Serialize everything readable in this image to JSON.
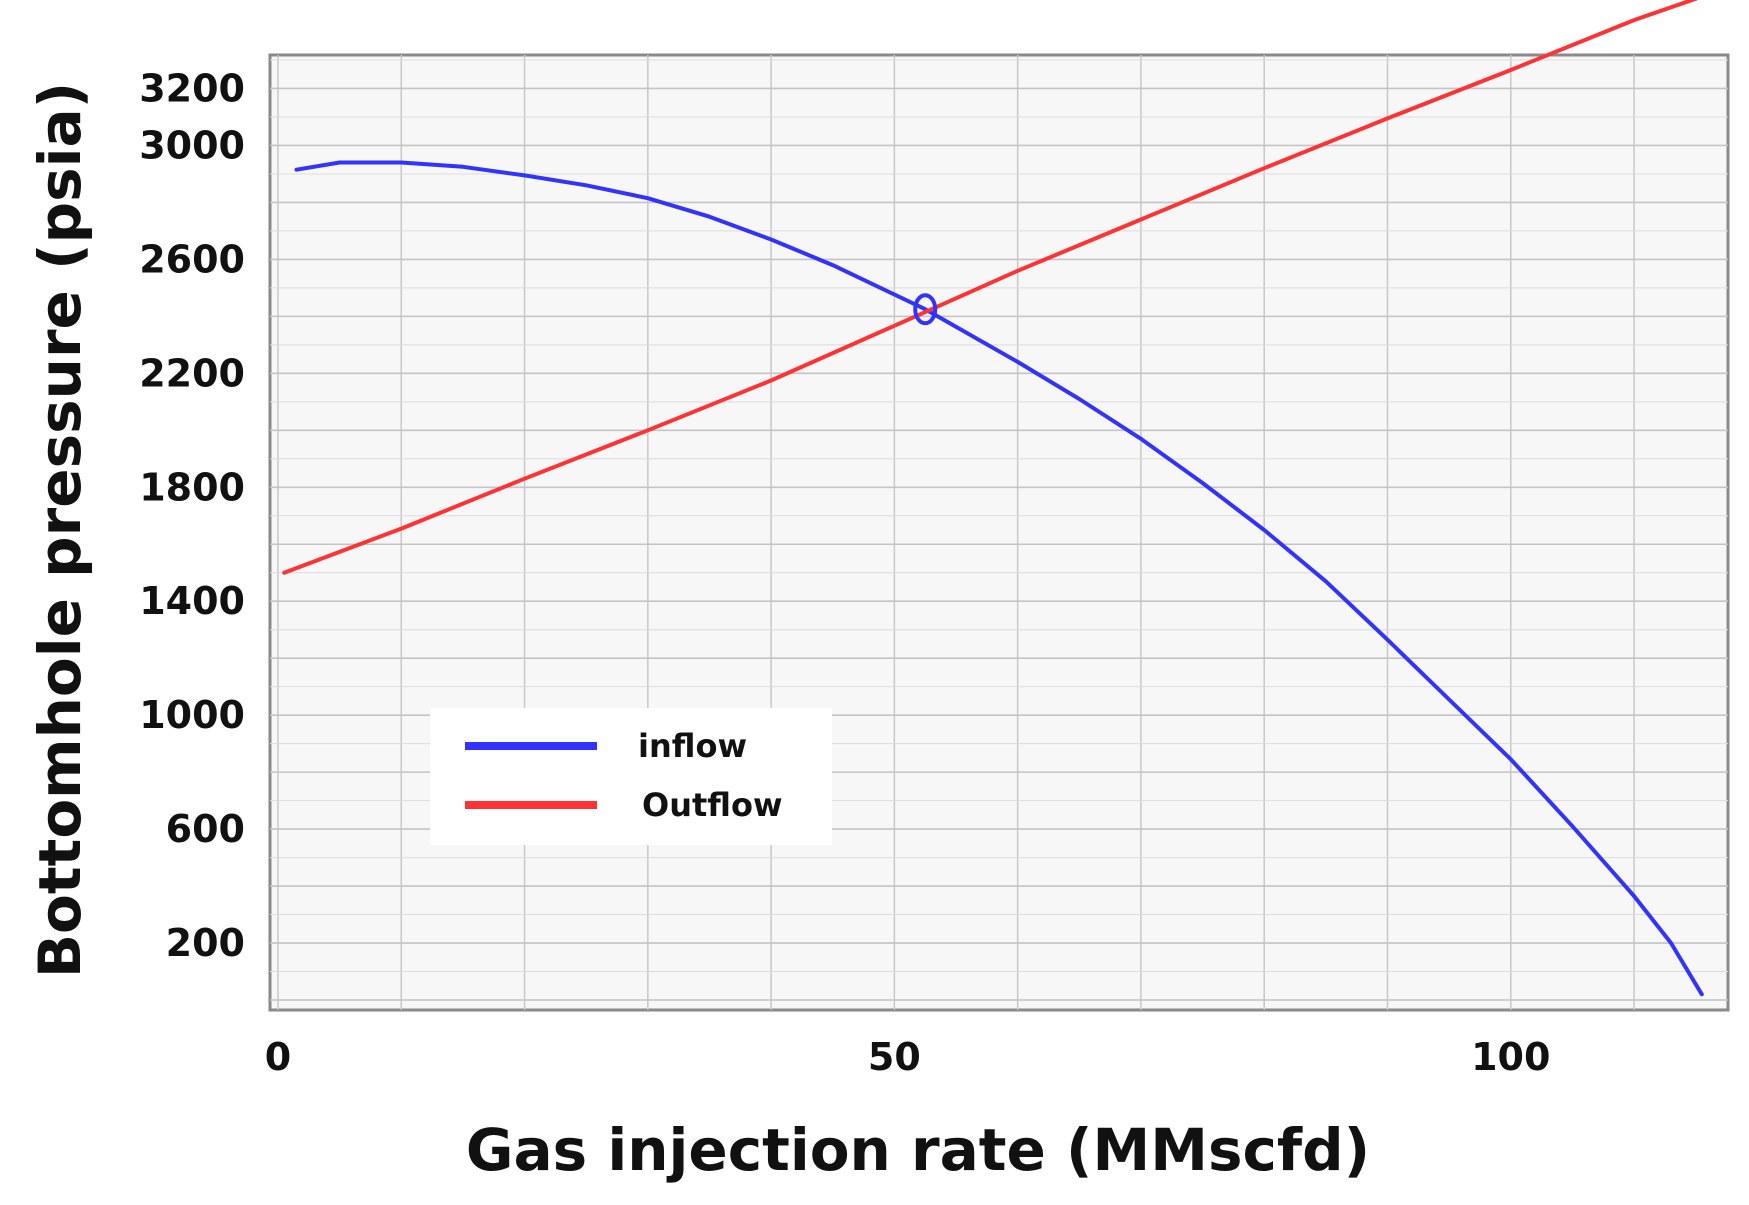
{
  "chart_data": {
    "type": "line",
    "xlabel": "Gas injection rate (MMscfd)",
    "ylabel": "Bottomhole pressure (psia)",
    "xlim": [
      0,
      116
    ],
    "ylim": [
      0,
      3300
    ],
    "x_ticks": [
      0,
      50,
      100
    ],
    "y_ticks": [
      200,
      600,
      1000,
      1400,
      1800,
      2200,
      2600,
      3000,
      3200
    ],
    "grid": true,
    "legend_position": "lower-left",
    "series": [
      {
        "name": "inflow",
        "color": "#3333ff",
        "x": [
          1.5,
          5,
          10,
          15,
          20,
          25,
          30,
          35,
          40,
          45,
          52.5,
          60,
          65,
          70,
          75,
          80,
          85,
          90,
          95,
          100,
          105,
          110,
          113,
          115.5
        ],
        "y": [
          2915,
          2940,
          2940,
          2925,
          2895,
          2860,
          2815,
          2750,
          2670,
          2580,
          2425,
          2240,
          2110,
          1970,
          1815,
          1650,
          1470,
          1265,
          1055,
          845,
          610,
          365,
          200,
          20
        ]
      },
      {
        "name": "Outflow",
        "color": "#ff3333",
        "x": [
          0.5,
          10,
          20,
          30,
          40,
          52.5,
          60,
          70,
          80,
          90,
          100,
          110,
          116
        ],
        "y": [
          1500,
          1655,
          1830,
          2000,
          2175,
          2415,
          2560,
          2740,
          2920,
          3095,
          3265,
          3440,
          3530
        ]
      }
    ],
    "marker": {
      "x": 52.5,
      "y": 2425,
      "color": "#3333ff"
    }
  }
}
